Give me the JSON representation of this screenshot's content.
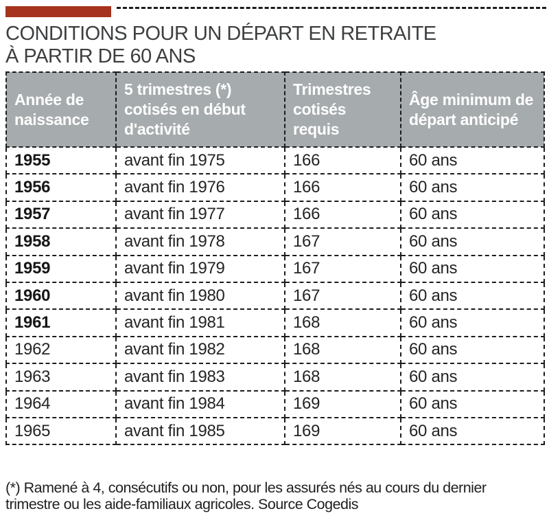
{
  "page": {
    "title_line1": "CONDITIONS POUR UN DÉPART EN RETRAITE",
    "title_line2": "À PARTIR DE 60 ANS"
  },
  "table": {
    "headers": [
      "Année de naissance",
      "5 trimestres (*) cotisés en début d'activité",
      "Trimestres cotisés requis",
      "Âge minimum de départ anticipé"
    ],
    "rows": [
      {
        "year": "1955",
        "cotises_debut": "avant fin 1975",
        "trimestres_requis": "166",
        "age_minimum": "60 ans",
        "bold": true
      },
      {
        "year": "1956",
        "cotises_debut": "avant fin 1976",
        "trimestres_requis": "166",
        "age_minimum": "60 ans",
        "bold": true
      },
      {
        "year": "1957",
        "cotises_debut": "avant fin 1977",
        "trimestres_requis": "166",
        "age_minimum": "60 ans",
        "bold": true
      },
      {
        "year": "1958",
        "cotises_debut": "avant fin 1978",
        "trimestres_requis": "167",
        "age_minimum": "60 ans",
        "bold": true
      },
      {
        "year": "1959",
        "cotises_debut": "avant fin 1979",
        "trimestres_requis": "167",
        "age_minimum": "60 ans",
        "bold": true
      },
      {
        "year": "1960",
        "cotises_debut": "avant fin 1980",
        "trimestres_requis": "167",
        "age_minimum": "60 ans",
        "bold": true
      },
      {
        "year": "1961",
        "cotises_debut": "avant fin 1981",
        "trimestres_requis": "168",
        "age_minimum": "60 ans",
        "bold": true
      },
      {
        "year": "1962",
        "cotises_debut": "avant fin 1982",
        "trimestres_requis": "168",
        "age_minimum": "60 ans",
        "bold": false
      },
      {
        "year": "1963",
        "cotises_debut": "avant fin 1983",
        "trimestres_requis": "168",
        "age_minimum": "60 ans",
        "bold": false
      },
      {
        "year": "1964",
        "cotises_debut": "avant fin 1984",
        "trimestres_requis": "169",
        "age_minimum": "60 ans",
        "bold": false
      },
      {
        "year": "1965",
        "cotises_debut": "avant fin 1985",
        "trimestres_requis": "169",
        "age_minimum": "60 ans",
        "bold": false
      }
    ]
  },
  "footnote": {
    "line1": "(*) Ramené à 4, consécutifs ou non, pour les assurés nés au cours du dernier",
    "line2": "trimestre ou les aide-familiaux agricoles. Source Cogedis"
  },
  "colors": {
    "accent_red": "#a5331e",
    "header_gray": "#a6abad",
    "border_dark": "#1c1c1c",
    "title_color": "#3c3e40"
  },
  "chart_data": {
    "type": "table",
    "title": "CONDITIONS POUR UN DÉPART EN RETRAITE À PARTIR DE 60 ANS",
    "columns": [
      "Année de naissance",
      "5 trimestres (*) cotisés en début d'activité",
      "Trimestres cotisés requis",
      "Âge minimum de départ anticipé"
    ],
    "rows": [
      [
        "1955",
        "avant fin 1975",
        166,
        "60 ans"
      ],
      [
        "1956",
        "avant fin 1976",
        166,
        "60 ans"
      ],
      [
        "1957",
        "avant fin 1977",
        166,
        "60 ans"
      ],
      [
        "1958",
        "avant fin 1978",
        167,
        "60 ans"
      ],
      [
        "1959",
        "avant fin 1979",
        167,
        "60 ans"
      ],
      [
        "1960",
        "avant fin 1980",
        167,
        "60 ans"
      ],
      [
        "1961",
        "avant fin 1981",
        168,
        "60 ans"
      ],
      [
        "1962",
        "avant fin 1982",
        168,
        "60 ans"
      ],
      [
        "1963",
        "avant fin 1983",
        168,
        "60 ans"
      ],
      [
        "1964",
        "avant fin 1984",
        169,
        "60 ans"
      ],
      [
        "1965",
        "avant fin 1985",
        169,
        "60 ans"
      ]
    ],
    "footnote": "(*) Ramené à 4, consécutifs ou non, pour les assurés nés au cours du dernier trimestre ou les aide-familiaux agricoles. Source Cogedis",
    "source": "Cogedis",
    "layout": {
      "header_background": "#a6abad",
      "borders": "dashed",
      "bold_years": [
        "1955",
        "1956",
        "1957",
        "1958",
        "1959",
        "1960",
        "1961"
      ]
    }
  }
}
